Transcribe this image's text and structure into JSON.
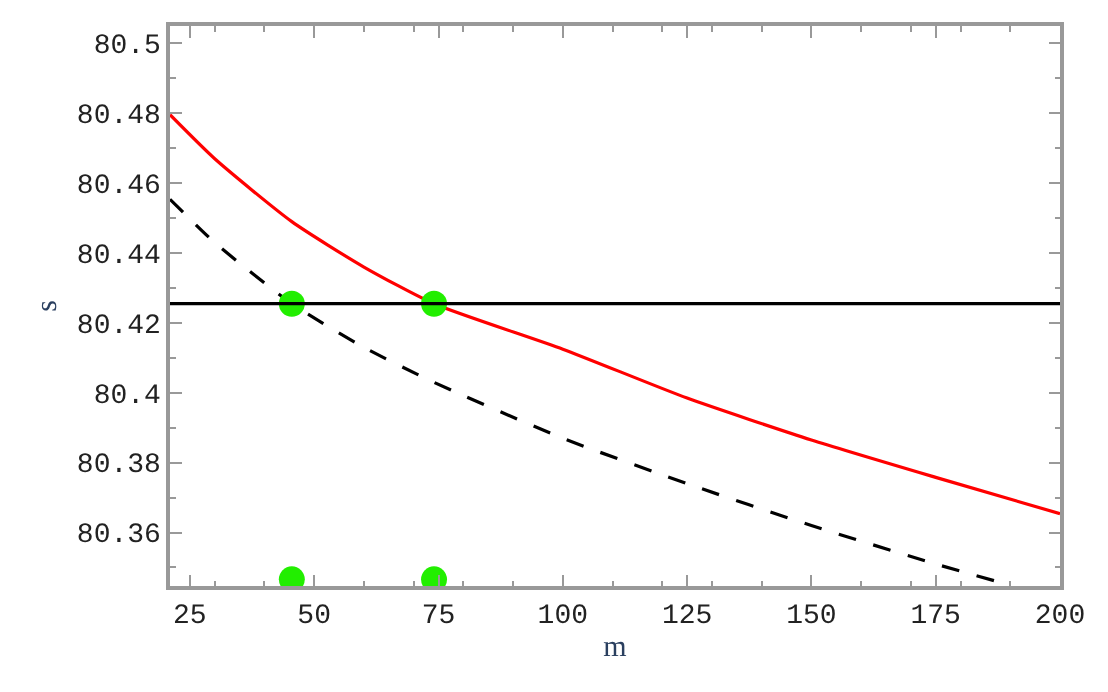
{
  "chart_data": {
    "type": "line",
    "xlabel": "m",
    "ylabel": "s",
    "xlim": [
      21,
      200
    ],
    "ylim": [
      80.3447,
      80.505
    ],
    "xticks": [
      25,
      50,
      75,
      100,
      125,
      150,
      175,
      200
    ],
    "yticks": [
      80.36,
      80.38,
      80.4,
      80.42,
      80.44,
      80.46,
      80.48,
      80.5
    ],
    "legend": false,
    "ref_lines": [
      {
        "axis": "y",
        "value": 80.4255,
        "color": "#000000",
        "line_style": "solid"
      }
    ],
    "series": [
      {
        "type": "line",
        "color": "#ff0000",
        "line_style": "solid",
        "marker": "none",
        "x": [
          21,
          30,
          45.5,
          60,
          74.1,
          100,
          125,
          150,
          175,
          200
        ],
        "values": [
          80.4796,
          80.467,
          80.449,
          80.436,
          80.4255,
          80.4125,
          80.3985,
          80.3865,
          80.3758,
          80.3654
        ]
      },
      {
        "type": "line",
        "color": "#000000",
        "line_style": "dashed",
        "marker": "none",
        "x": [
          21,
          30,
          45.5,
          60,
          74.1,
          100,
          125,
          150,
          175,
          189.8
        ],
        "values": [
          80.4554,
          80.443,
          80.4255,
          80.413,
          80.403,
          80.387,
          80.374,
          80.362,
          80.351,
          80.345
        ]
      },
      {
        "type": "scatter",
        "color": "#22ee00",
        "marker": "circle",
        "x": [
          45.5,
          74.1,
          45.5,
          74.1
        ],
        "values": [
          80.4255,
          80.4255,
          80.3466,
          80.3466
        ]
      }
    ]
  }
}
